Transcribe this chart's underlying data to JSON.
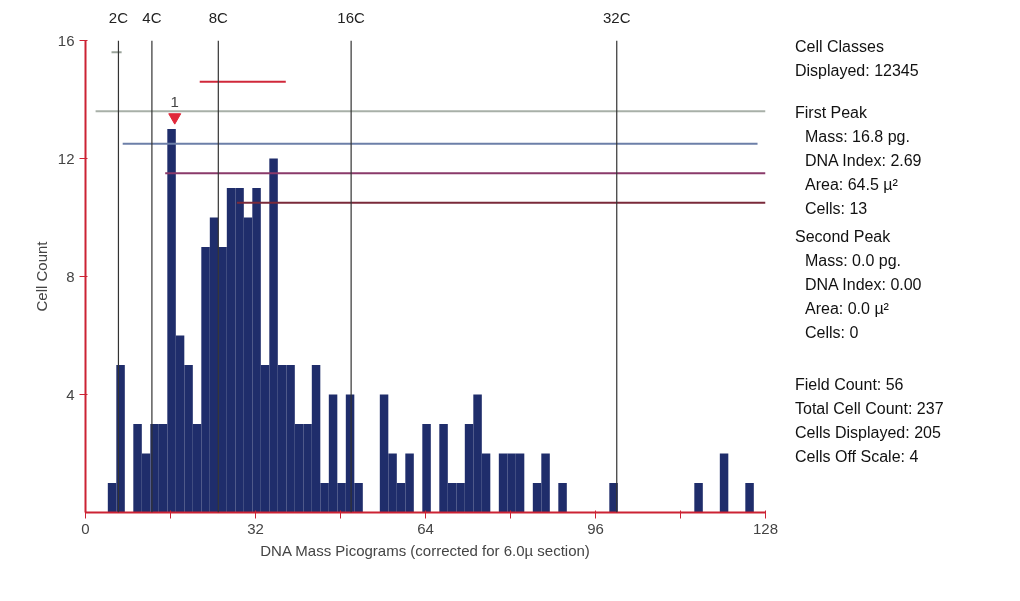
{
  "chart_data": {
    "type": "histogram",
    "xlabel": "DNA Mass Picograms (corrected for 6.0µ section)",
    "ylabel": "Cell Count",
    "bins": [
      1.0,
      2.6,
      4.2,
      5.8,
      7.4,
      9.0,
      10.6,
      12.2,
      13.8,
      15.4,
      17.0,
      18.6,
      20.2,
      21.8,
      23.4,
      25.0,
      26.6,
      28.2,
      29.8,
      31.4,
      33.0,
      34.6,
      36.2,
      37.8,
      39.4,
      41.0,
      42.6,
      44.2,
      45.8,
      47.4,
      49.0,
      50.6,
      52.2,
      53.8,
      55.4,
      57.0,
      58.6,
      60.2,
      61.8,
      63.4,
      65.0,
      66.6,
      68.2,
      69.8,
      71.4,
      73.0,
      74.6,
      76.2,
      77.8,
      79.4,
      81.0,
      82.6,
      84.2,
      85.8,
      87.4,
      89.0,
      90.6,
      92.2,
      93.8,
      95.4,
      97.0,
      98.6,
      100.2,
      101.8,
      103.4,
      105.0,
      106.6,
      108.2,
      109.8,
      111.4,
      113.0,
      114.6,
      116.2,
      117.8,
      119.4,
      121.0,
      122.6,
      124.2,
      125.8,
      127.4
    ],
    "values": [
      0,
      0,
      1,
      5,
      0,
      3,
      2,
      3,
      3,
      13,
      6,
      5,
      3,
      9,
      10,
      9,
      11,
      11,
      10,
      11,
      5,
      12,
      5,
      5,
      3,
      3,
      5,
      1,
      4,
      1,
      4,
      1,
      0,
      0,
      4,
      2,
      1,
      2,
      0,
      3,
      0,
      3,
      1,
      1,
      3,
      4,
      2,
      0,
      2,
      2,
      2,
      0,
      1,
      2,
      0,
      1,
      0,
      0,
      0,
      0,
      0,
      1,
      0,
      0,
      0,
      0,
      0,
      0,
      0,
      0,
      0,
      1,
      0,
      0,
      2,
      0,
      0,
      1,
      0
    ],
    "color": "#1f2d6b",
    "series": [
      {
        "type": "line",
        "color": "#9aa39a",
        "x": [
          4.9,
          6.8
        ],
        "values": [
          15.6,
          15.6
        ]
      },
      {
        "type": "line",
        "color": "#d0283a",
        "x": [
          21.5,
          37.7
        ],
        "values": [
          14.6,
          14.6
        ]
      },
      {
        "type": "line",
        "color": "#a8b0a8",
        "x": [
          1.9,
          128
        ],
        "values": [
          13.6,
          13.6
        ]
      },
      {
        "type": "line",
        "color": "#6c7fa8",
        "x": [
          7.0,
          126.5
        ],
        "values": [
          12.5,
          12.5
        ]
      },
      {
        "type": "line",
        "color": "#8a3a6a",
        "x": [
          15.0,
          128
        ],
        "values": [
          11.5,
          11.5
        ]
      },
      {
        "type": "line",
        "color": "#7a2a3a",
        "x": [
          28.5,
          128
        ],
        "values": [
          10.5,
          10.5
        ]
      }
    ],
    "xlim": [
      0,
      128
    ],
    "ylim": [
      0,
      16
    ],
    "xticks": [
      0,
      {
        "value": 16,
        "label": null
      },
      32,
      {
        "value": 48,
        "label": null
      },
      64,
      {
        "value": 80,
        "label": null
      },
      96,
      {
        "value": 112,
        "label": null
      },
      128
    ],
    "yticks": [
      4,
      8,
      12,
      16
    ],
    "grid": false,
    "marker": "none",
    "ref_lines": [
      {
        "axis": "x",
        "value": 6.2,
        "label": "2C",
        "color": "#333333"
      },
      {
        "axis": "x",
        "value": 12.5,
        "label": "4C",
        "color": "#333333"
      },
      {
        "axis": "x",
        "value": 25,
        "label": "8C",
        "color": "#333333"
      },
      {
        "axis": "x",
        "value": 50,
        "label": "16C",
        "color": "#333333"
      },
      {
        "axis": "x",
        "value": 100,
        "label": "32C",
        "color": "#333333"
      }
    ],
    "annotations": [
      {
        "text": "1",
        "x": 16.8,
        "y": 13.4
      },
      "Cell Classes",
      "Displayed: 12345",
      "First Peak",
      "Mass: 16.8 pg.",
      "DNA Index: 2.69",
      "Area: 64.5 µ²",
      "Cells: 13",
      "Second Peak",
      "Mass: 0.0 pg.",
      "DNA Index: 0.00",
      "Area: 0.0 µ²",
      "Cells: 0",
      "Field Count: 56",
      "Total Cell Count: 237",
      "Cells Displayed: 205",
      "Cells Off Scale: 4"
    ]
  }
}
